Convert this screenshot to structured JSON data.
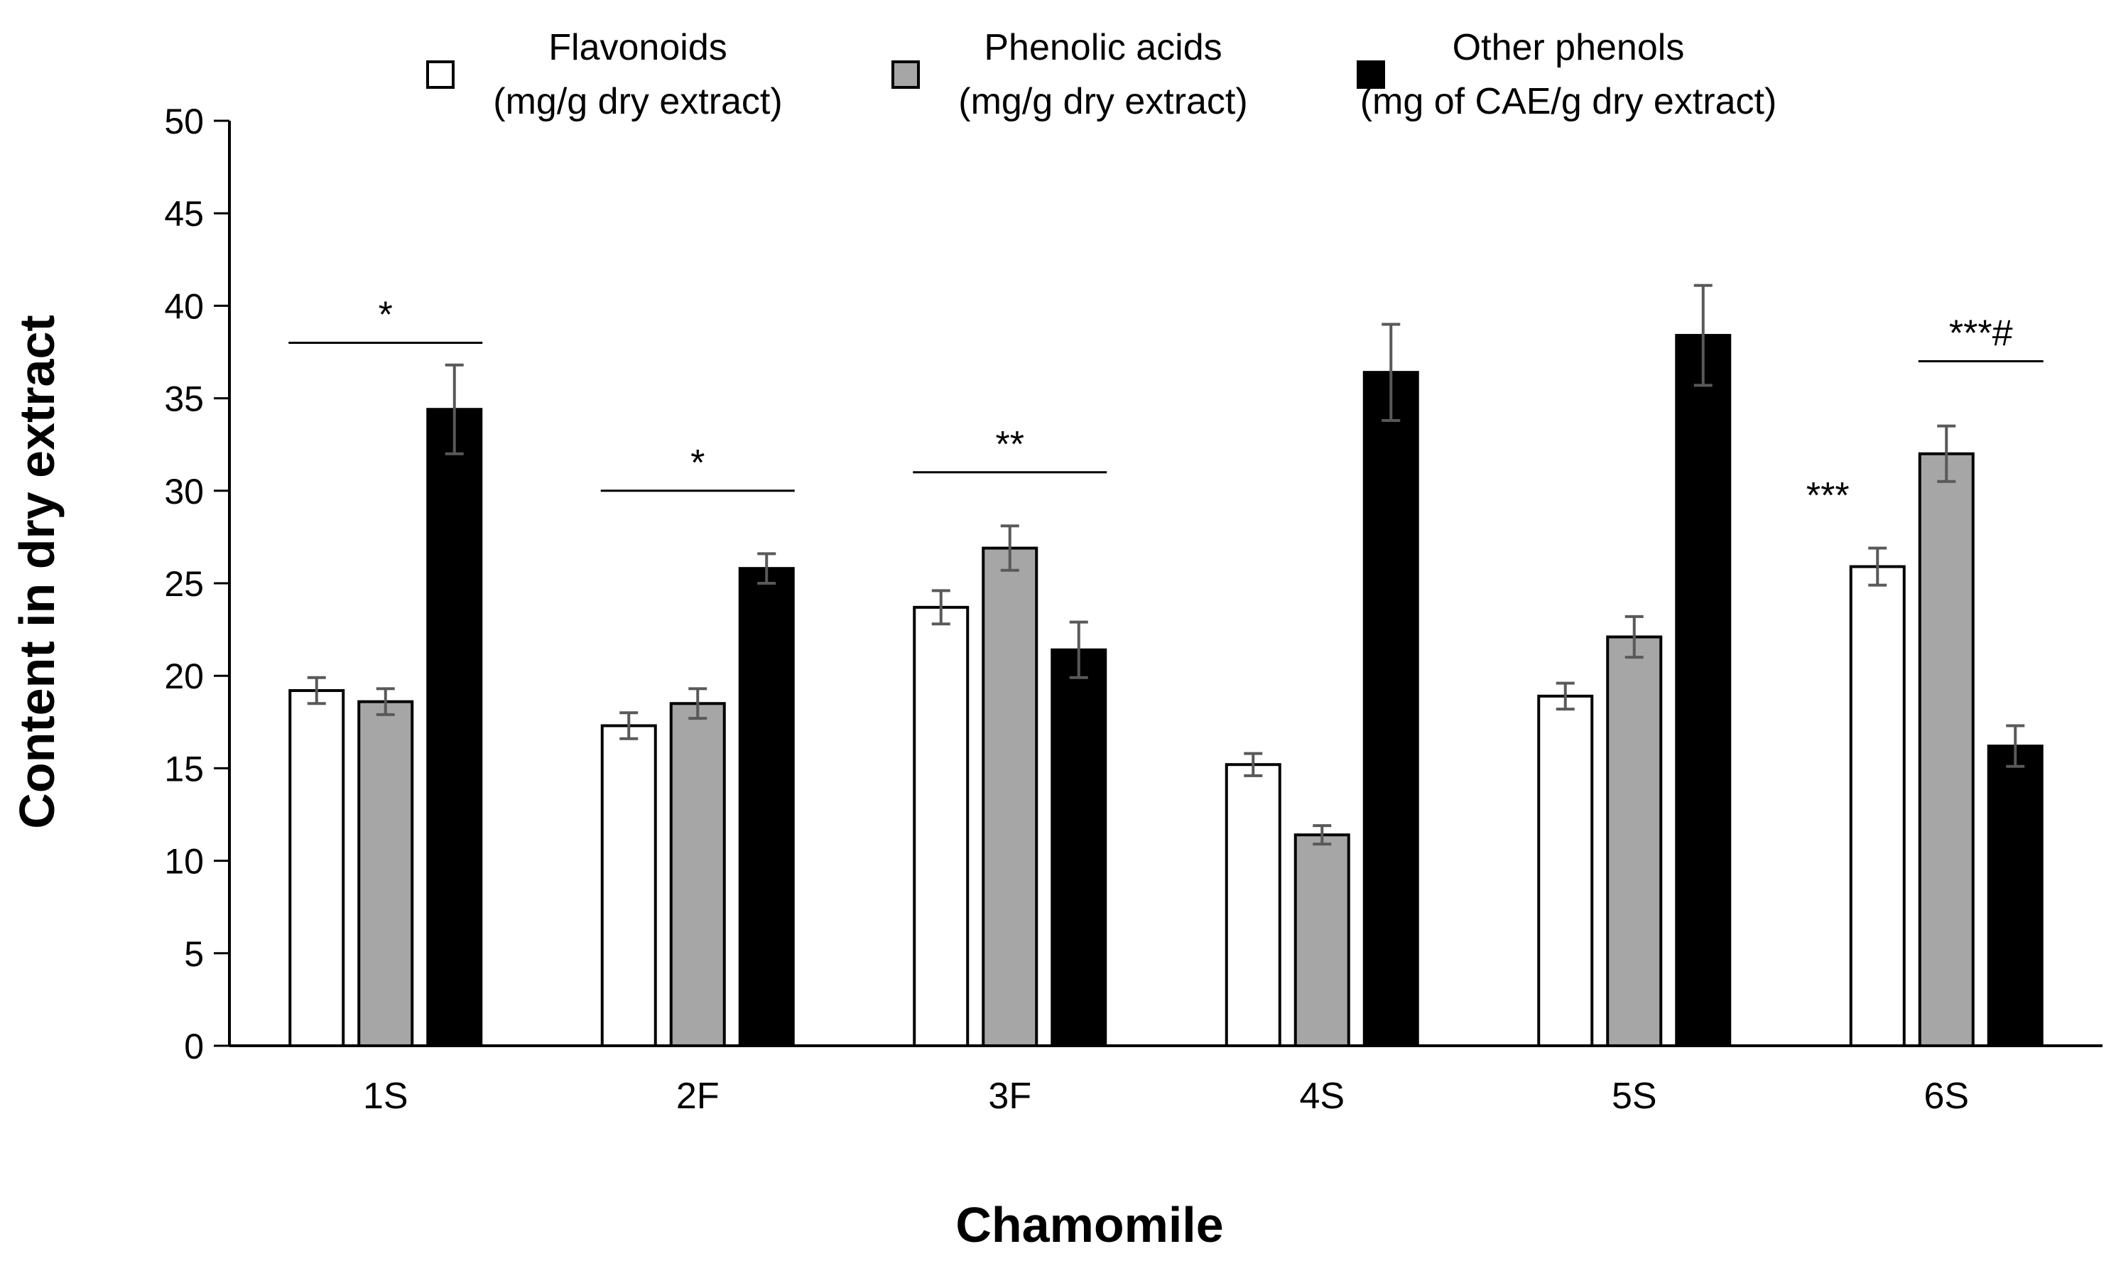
{
  "chart_data": {
    "type": "bar",
    "title": "",
    "xlabel": "Chamomile",
    "ylabel": "Content  in dry extract",
    "ylim": [
      0,
      50
    ],
    "ytick_step": 5,
    "yticks": [
      "0",
      "5",
      "10",
      "15",
      "20",
      "25",
      "30",
      "35",
      "40",
      "45",
      "50"
    ],
    "grid": false,
    "legend_position": "top",
    "categories": [
      "1S",
      "2F",
      "3F",
      "4S",
      "5S",
      "6S"
    ],
    "series": [
      {
        "name": "Flavonoids (mg/g dry extract)",
        "legend_lines": [
          "Flavonoids",
          "(mg/g  dry extract)"
        ],
        "color": "#ffffff",
        "values": [
          19.2,
          17.3,
          23.7,
          15.2,
          18.9,
          25.9
        ],
        "errors": [
          0.7,
          0.7,
          0.9,
          0.6,
          0.7,
          1.0
        ]
      },
      {
        "name": "Phenolic acids (mg/g dry extract)",
        "legend_lines": [
          "Phenolic acids",
          "(mg/g  dry extract)"
        ],
        "color": "#a6a6a6",
        "values": [
          18.6,
          18.5,
          26.9,
          11.4,
          22.1,
          32.0
        ],
        "errors": [
          0.7,
          0.8,
          1.2,
          0.5,
          1.1,
          1.5
        ]
      },
      {
        "name": "Other phenols (mg of CAE/g dry extract)",
        "legend_lines": [
          "Other phenols",
          "(mg  of CAE/g dry extract)"
        ],
        "color": "#000000",
        "values": [
          34.4,
          25.8,
          21.4,
          36.4,
          38.4,
          16.2
        ],
        "errors": [
          2.4,
          0.8,
          1.5,
          2.6,
          2.7,
          1.1
        ]
      }
    ],
    "annotations": [
      {
        "category_index": 0,
        "text": "*",
        "type": "bracket",
        "from_series": 0,
        "to_series": 2,
        "y": 38
      },
      {
        "category_index": 1,
        "text": "*",
        "type": "bracket",
        "from_series": 0,
        "to_series": 2,
        "y": 30
      },
      {
        "category_index": 2,
        "text": "**",
        "type": "bracket",
        "from_series": 0,
        "to_series": 2,
        "y": 31
      },
      {
        "category_index": 5,
        "text": "***",
        "type": "label",
        "series_index": 0,
        "y": 30
      },
      {
        "category_index": 5,
        "text": "***#",
        "type": "bracket",
        "from_series": 1,
        "to_series": 2,
        "y": 37
      }
    ]
  }
}
